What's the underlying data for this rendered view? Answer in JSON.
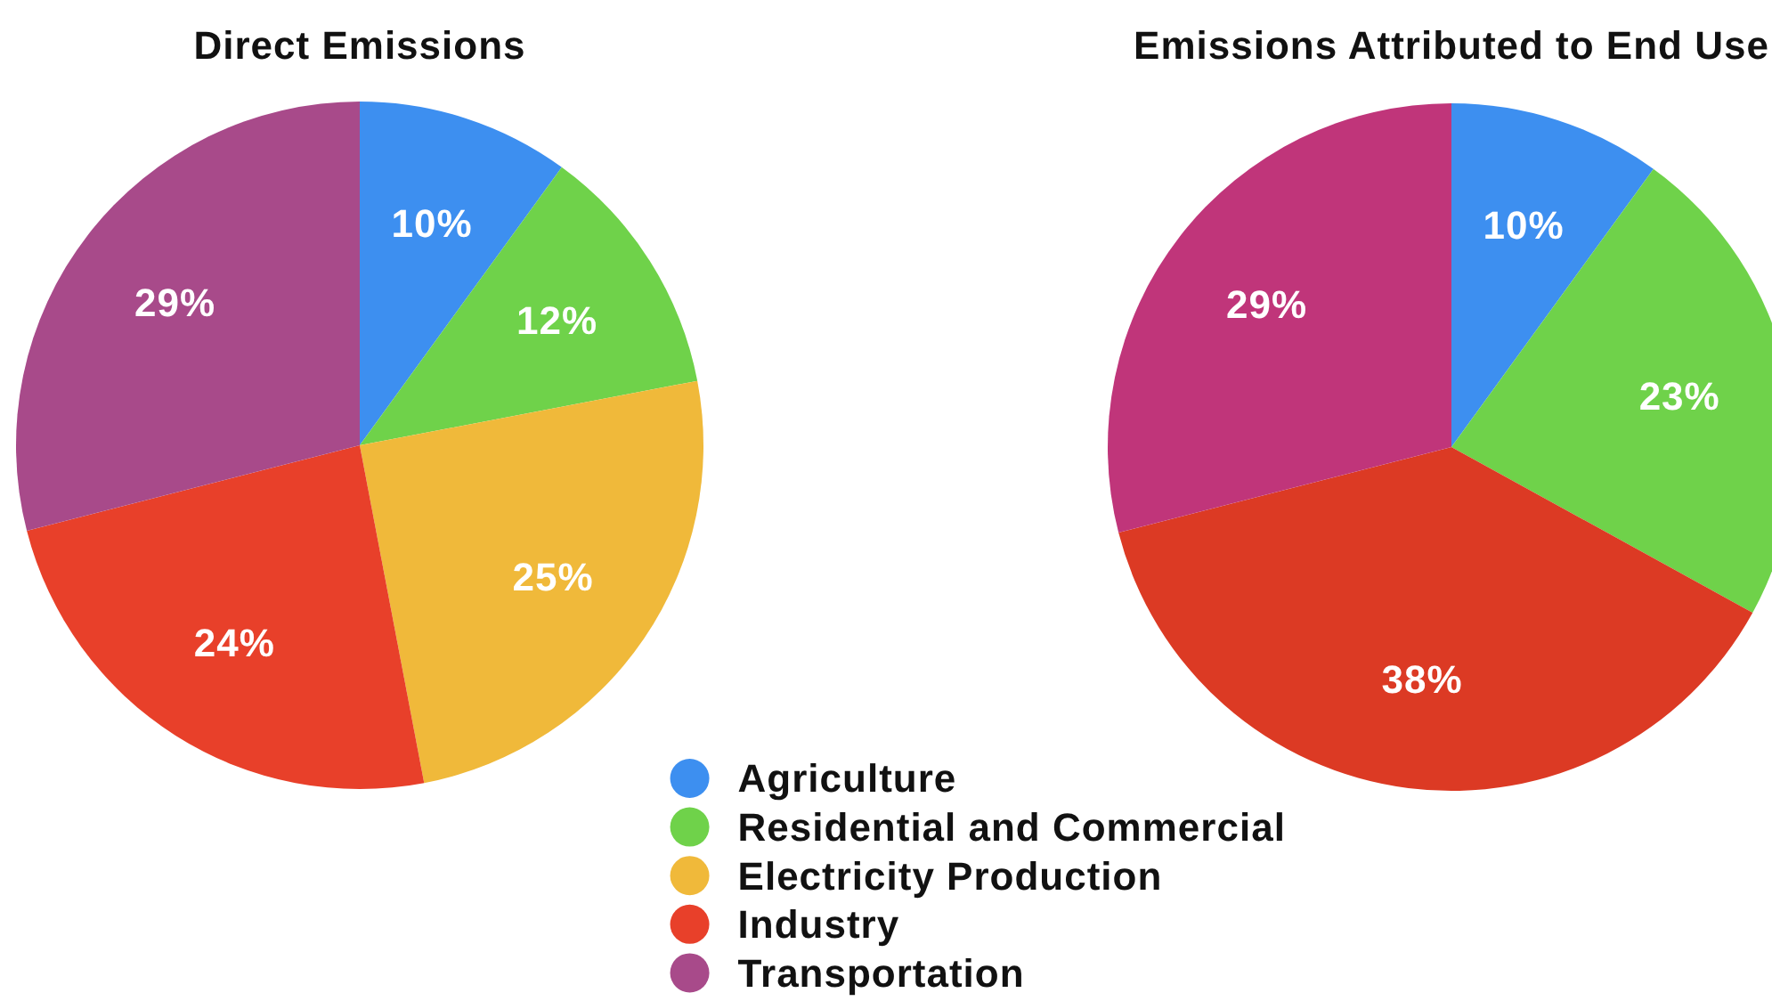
{
  "chart_data": [
    {
      "type": "pie",
      "title": "Direct Emissions",
      "categories": [
        "Agriculture",
        "Residential and Commercial",
        "Electricity Production",
        "Industry",
        "Transportation"
      ],
      "values": [
        10,
        12,
        25,
        24,
        29
      ],
      "colors": [
        "#3d8ff0",
        "#6fd24a",
        "#f0b93a",
        "#e8402a",
        "#a84a8a"
      ],
      "value_labels": [
        "10%",
        "12%",
        "25%",
        "24%",
        "29%"
      ],
      "legend": "bottom right"
    },
    {
      "type": "pie",
      "title": "Emissions Attributed to End Use",
      "categories": [
        null,
        null,
        null,
        null
      ],
      "values": [
        10,
        23,
        38,
        29
      ],
      "colors": [
        "#3d8ff0",
        "#6fd24a",
        "#dc3a24",
        "#c0357a"
      ],
      "value_labels": [
        "10%",
        "23%",
        "38%",
        "29%"
      ]
    }
  ]
}
